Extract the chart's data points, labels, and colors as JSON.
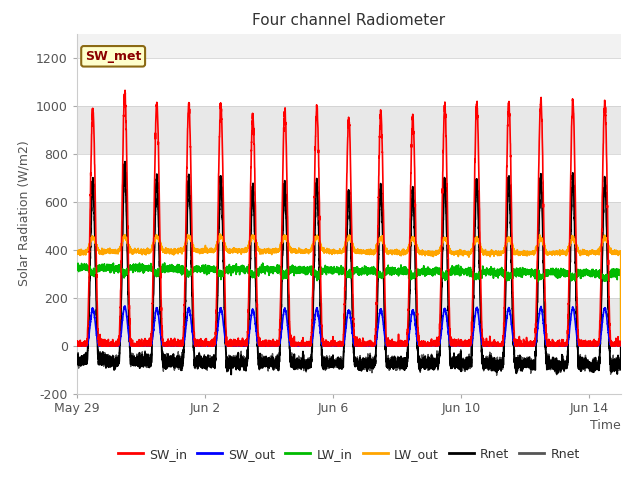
{
  "title": "Four channel Radiometer",
  "xlabel": "Time",
  "ylabel": "Solar Radiation (W/m2)",
  "ylim": [
    -200,
    1300
  ],
  "yticks": [
    -200,
    0,
    200,
    400,
    600,
    800,
    1000,
    1200
  ],
  "num_days": 17,
  "annotation_text": "SW_met",
  "annotation_bg": "#FFFFCC",
  "annotation_border": "#8B6914",
  "xtick_labels": [
    "May 29",
    "Jun 2",
    "Jun 6",
    "Jun 10",
    "Jun 14"
  ],
  "xtick_positions": [
    0,
    4,
    8,
    12,
    16
  ],
  "day_peaks_sw": [
    980,
    1050,
    1010,
    1000,
    1000,
    960,
    980,
    990,
    950,
    960,
    950,
    990,
    1000,
    1010,
    1020,
    1010,
    1010
  ],
  "grid_band_color": "#E8E8E8",
  "plot_bg": "#F5F5F5"
}
